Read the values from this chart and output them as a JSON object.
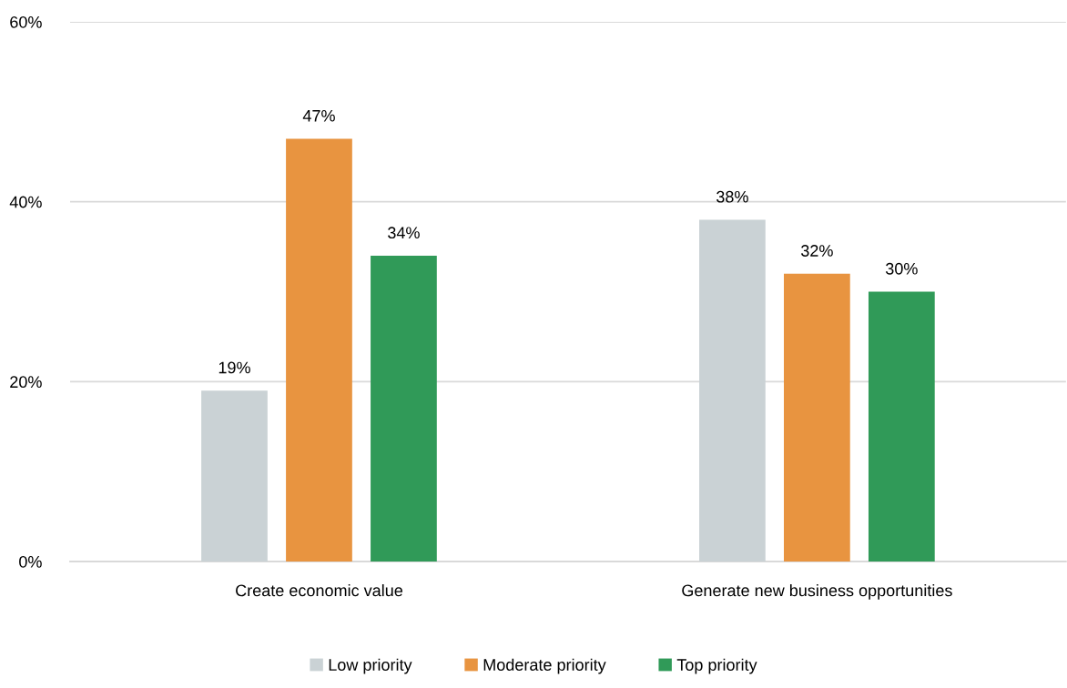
{
  "chart_data": {
    "type": "bar",
    "categories": [
      "Create economic value",
      "Generate new business opportunities"
    ],
    "series": [
      {
        "name": "Low priority",
        "color": "#cad2d5",
        "values": [
          19,
          38
        ],
        "value_labels": [
          "19%",
          "38%"
        ]
      },
      {
        "name": "Moderate priority",
        "color": "#e89440",
        "values": [
          47,
          32
        ],
        "value_labels": [
          "47%",
          "32%"
        ]
      },
      {
        "name": "Top priority",
        "color": "#309a58",
        "values": [
          34,
          30
        ],
        "value_labels": [
          "34%",
          "30%"
        ]
      }
    ],
    "ylim": [
      0,
      60
    ],
    "yticks": [
      {
        "value": 0,
        "label": "0%"
      },
      {
        "value": 20,
        "label": "20%"
      },
      {
        "value": 40,
        "label": "40%"
      },
      {
        "value": 60,
        "label": "60%"
      }
    ],
    "grid": "y",
    "legend": "bottom"
  }
}
